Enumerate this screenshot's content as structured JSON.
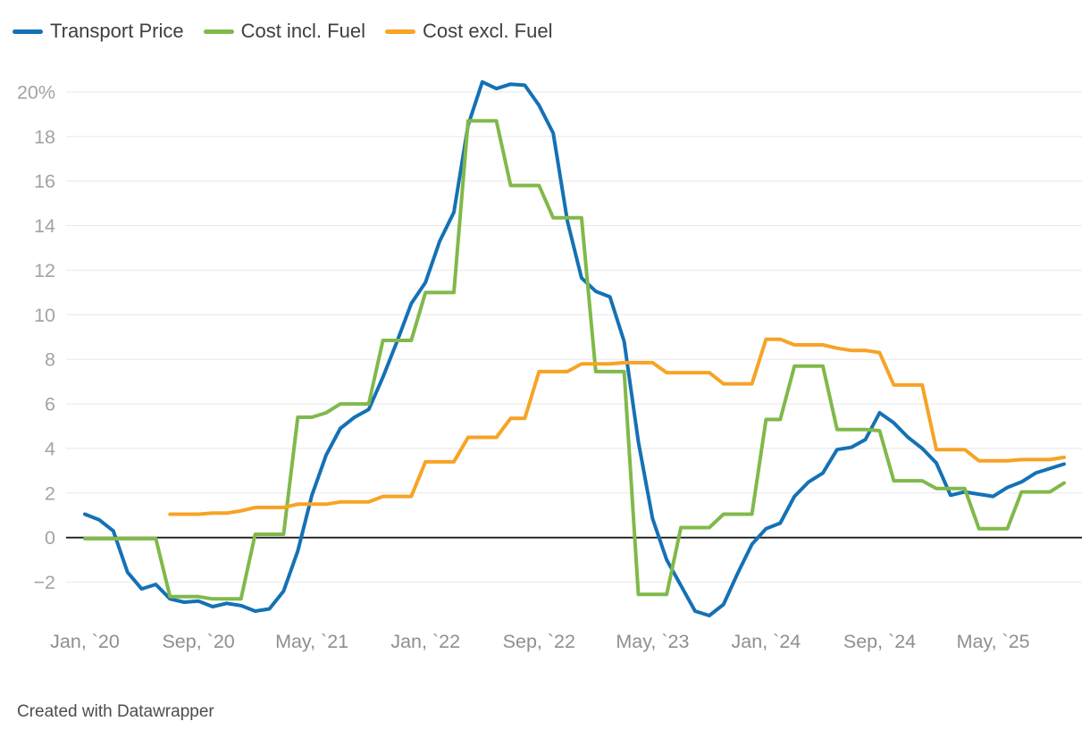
{
  "legend": {
    "items": [
      {
        "label": "Transport Price"
      },
      {
        "label": "Cost incl. Fuel"
      },
      {
        "label": "Cost excl. Fuel"
      }
    ]
  },
  "footer": {
    "attribution": "Created with Datawrapper"
  },
  "chart_data": {
    "type": "line",
    "title": "",
    "unit": "%",
    "grid": true,
    "legend_position": "top",
    "x": [
      "2020-01",
      "2020-02",
      "2020-03",
      "2020-04",
      "2020-05",
      "2020-06",
      "2020-07",
      "2020-08",
      "2020-09",
      "2020-10",
      "2020-11",
      "2020-12",
      "2021-01",
      "2021-02",
      "2021-03",
      "2021-04",
      "2021-05",
      "2021-06",
      "2021-07",
      "2021-08",
      "2021-09",
      "2021-10",
      "2021-11",
      "2021-12",
      "2022-01",
      "2022-02",
      "2022-03",
      "2022-04",
      "2022-05",
      "2022-06",
      "2022-07",
      "2022-08",
      "2022-09",
      "2022-10",
      "2022-11",
      "2022-12",
      "2023-01",
      "2023-02",
      "2023-03",
      "2023-04",
      "2023-05",
      "2023-06",
      "2023-07",
      "2023-08",
      "2023-09",
      "2023-10",
      "2023-11",
      "2023-12",
      "2024-01",
      "2024-02",
      "2024-03",
      "2024-04",
      "2024-05",
      "2024-06",
      "2024-07",
      "2024-08",
      "2024-09",
      "2024-10",
      "2024-11",
      "2024-12",
      "2025-01",
      "2025-02",
      "2025-03",
      "2025-04",
      "2025-05",
      "2025-06",
      "2025-07",
      "2025-08",
      "2025-09",
      "2025-10"
    ],
    "series": [
      {
        "id": "transport-price",
        "name": "Transport Price",
        "color": "#1571b5",
        "values": [
          1.05,
          0.8,
          0.3,
          -1.55,
          -2.3,
          -2.1,
          -2.75,
          -2.9,
          -2.85,
          -3.1,
          -2.95,
          -3.05,
          -3.3,
          -3.2,
          -2.4,
          -0.6,
          1.9,
          3.7,
          4.9,
          5.4,
          5.75,
          7.2,
          8.8,
          10.5,
          11.45,
          13.3,
          14.6,
          18.5,
          20.45,
          20.15,
          20.35,
          20.3,
          19.4,
          18.15,
          14.2,
          11.65,
          11.05,
          10.8,
          8.8,
          4.3,
          0.85,
          -1.0,
          -2.15,
          -3.3,
          -3.5,
          -3.0,
          -1.6,
          -0.3,
          0.4,
          0.65,
          1.85,
          2.5,
          2.9,
          3.95,
          4.05,
          4.4,
          5.6,
          5.15,
          4.5,
          4.0,
          3.35,
          1.9,
          2.05,
          1.95,
          1.85,
          2.25,
          2.5,
          2.9,
          3.1,
          3.3
        ]
      },
      {
        "id": "cost-incl-fuel",
        "name": "Cost incl. Fuel",
        "color": "#80b94a",
        "values": [
          -0.05,
          -0.05,
          -0.05,
          -0.05,
          -0.05,
          -0.05,
          -2.65,
          -2.65,
          -2.65,
          -2.75,
          -2.75,
          -2.75,
          0.15,
          0.15,
          0.15,
          5.4,
          5.4,
          5.6,
          6.0,
          6.0,
          6.0,
          8.85,
          8.85,
          8.85,
          11.0,
          11.0,
          11.0,
          18.7,
          18.7,
          18.7,
          15.8,
          15.8,
          15.8,
          14.35,
          14.35,
          14.35,
          7.45,
          7.45,
          7.45,
          -2.55,
          -2.55,
          -2.55,
          0.45,
          0.45,
          0.45,
          1.05,
          1.05,
          1.05,
          5.3,
          5.3,
          7.7,
          7.7,
          7.7,
          4.85,
          4.85,
          4.85,
          4.8,
          2.55,
          2.55,
          2.55,
          2.2,
          2.2,
          2.2,
          0.4,
          0.4,
          0.4,
          2.05,
          2.05,
          2.05,
          2.45
        ]
      },
      {
        "id": "cost-excl-fuel",
        "name": "Cost excl. Fuel",
        "color": "#f7a325",
        "values": [
          null,
          null,
          null,
          null,
          null,
          null,
          1.05,
          1.05,
          1.05,
          1.1,
          1.1,
          1.2,
          1.35,
          1.35,
          1.35,
          1.5,
          1.5,
          1.5,
          1.6,
          1.6,
          1.6,
          1.85,
          1.85,
          1.85,
          3.4,
          3.4,
          3.4,
          4.5,
          4.5,
          4.5,
          5.35,
          5.35,
          7.45,
          7.45,
          7.45,
          7.8,
          7.8,
          7.8,
          7.85,
          7.85,
          7.85,
          7.4,
          7.4,
          7.4,
          7.4,
          6.9,
          6.9,
          6.9,
          8.9,
          8.9,
          8.65,
          8.65,
          8.65,
          8.5,
          8.4,
          8.4,
          8.3,
          6.85,
          6.85,
          6.85,
          3.95,
          3.95,
          3.95,
          3.45,
          3.45,
          3.45,
          3.5,
          3.5,
          3.5,
          3.6
        ]
      }
    ],
    "y_axis": {
      "ticks": [
        20,
        18,
        16,
        14,
        12,
        10,
        8,
        6,
        4,
        2,
        0,
        -2
      ],
      "tick_labels": [
        "20%",
        "18",
        "16",
        "14",
        "12",
        "10",
        "8",
        "6",
        "4",
        "2",
        "0",
        "−2"
      ],
      "ylim": [
        -4,
        21
      ]
    },
    "x_axis": {
      "ticks": [
        {
          "index": 0,
          "label": "Jan, `20"
        },
        {
          "index": 8,
          "label": "Sep, `20"
        },
        {
          "index": 16,
          "label": "May, `21"
        },
        {
          "index": 24,
          "label": "Jan, `22"
        },
        {
          "index": 32,
          "label": "Sep, `22"
        },
        {
          "index": 40,
          "label": "May, `23"
        },
        {
          "index": 48,
          "label": "Jan, `24"
        },
        {
          "index": 56,
          "label": "Sep, `24"
        },
        {
          "index": 64,
          "label": "May, `25"
        }
      ]
    },
    "style": {
      "grid_color": "#e8e8e8",
      "zero_line_color": "#1a1a1a",
      "y_tick_color": "#a3a3a3",
      "x_tick_color": "#8f8f8f"
    }
  }
}
